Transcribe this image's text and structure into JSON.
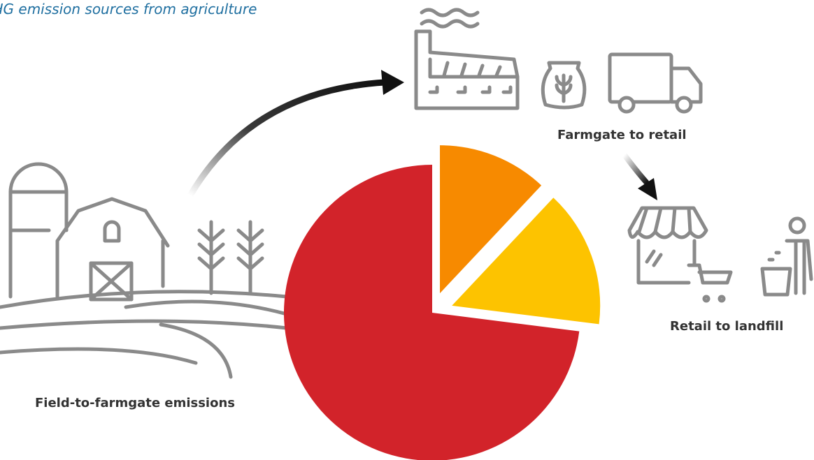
{
  "chart_data": {
    "type": "pie",
    "title": "GHG emission sources from agriculture",
    "categories": [
      "Field-to-farmgate emissions",
      "Farmgate to retail",
      "Retail to landfill"
    ],
    "values": [
      73,
      12,
      15
    ],
    "colors": [
      "#d2232a",
      "#f78a00",
      "#fdc300"
    ]
  }
}
